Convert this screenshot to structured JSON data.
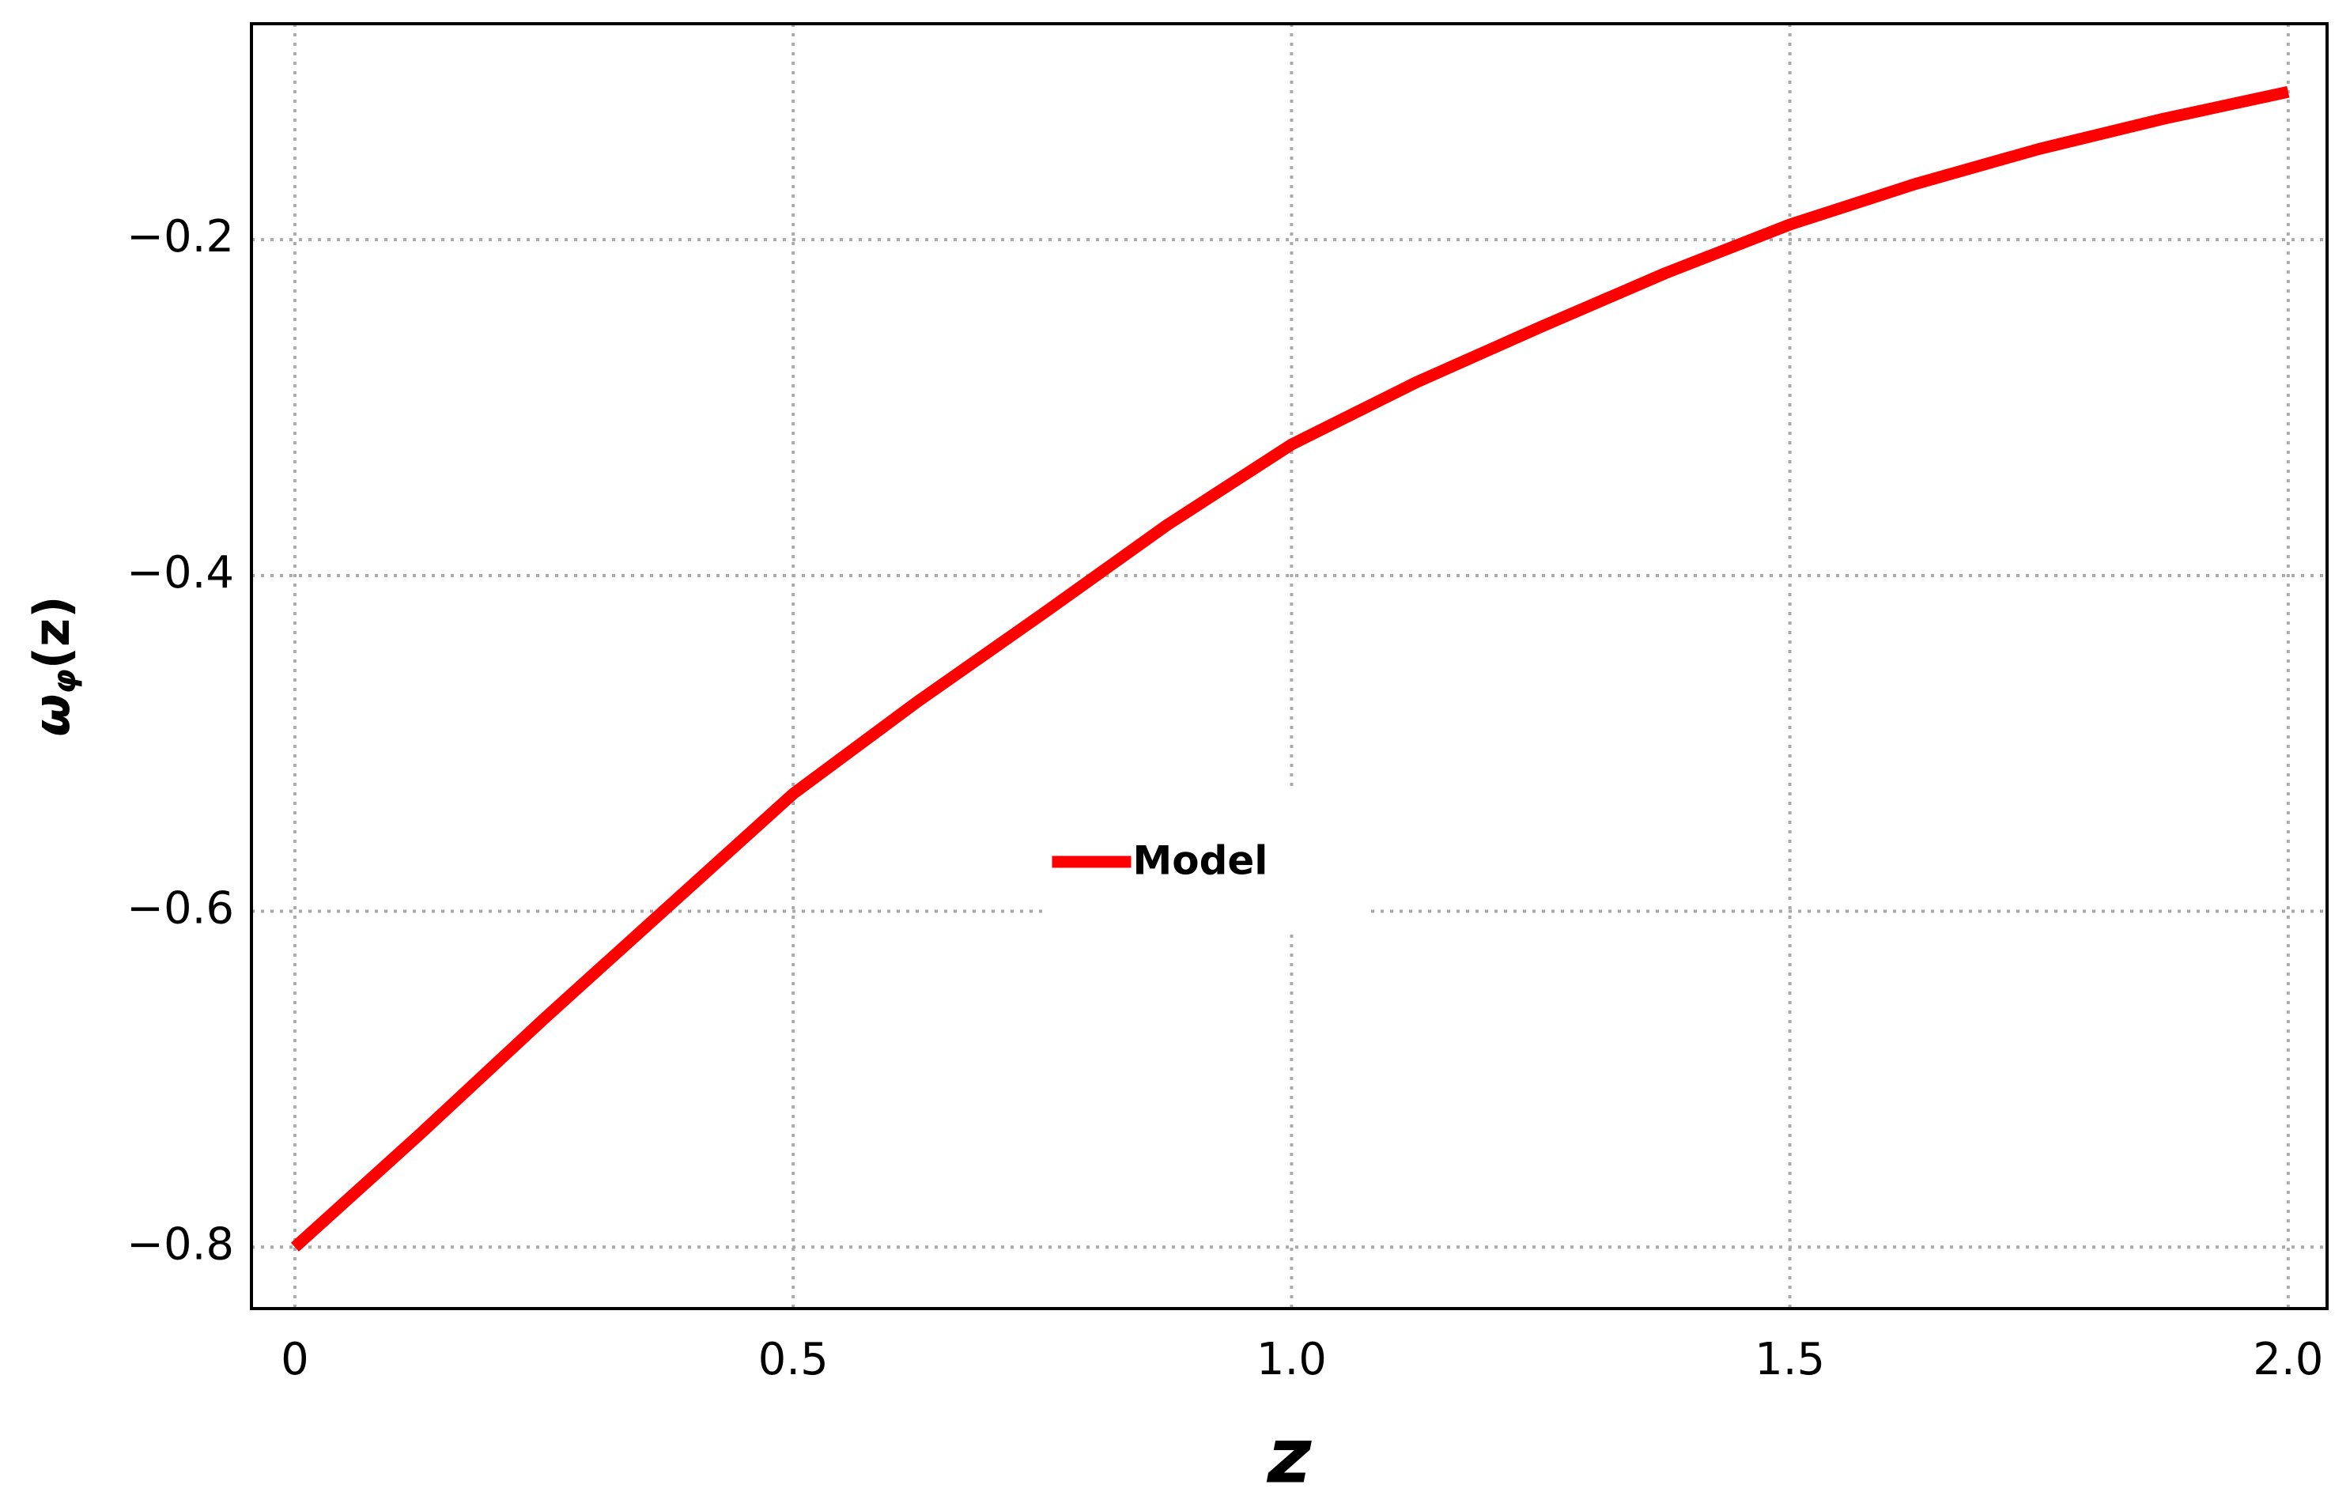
{
  "chart_data": {
    "type": "line",
    "x_label": "z",
    "y_label": {
      "symbol": "ω",
      "subscript": "φ",
      "argument": "(z)"
    },
    "x": [
      0,
      0.125,
      0.25,
      0.375,
      0.5,
      0.625,
      0.75,
      0.875,
      1.0,
      1.125,
      1.25,
      1.375,
      1.5,
      1.625,
      1.75,
      1.875,
      2.0
    ],
    "series": [
      {
        "name": "Model",
        "color": "#ff0000",
        "values": [
          -0.8,
          -0.733,
          -0.664,
          -0.597,
          -0.53,
          -0.475,
          -0.423,
          -0.37,
          -0.322,
          -0.285,
          -0.252,
          -0.22,
          -0.191,
          -0.167,
          -0.146,
          -0.128,
          -0.112
        ]
      }
    ],
    "xlim": [
      -0.0436,
      2.039
    ],
    "ylim": [
      -0.8366,
      -0.0714
    ],
    "xticks": [
      0,
      0.5,
      {
        "value": 1,
        "label": "1.0"
      },
      1.5,
      {
        "value": 2,
        "label": "2.0"
      }
    ],
    "yticks": [
      {
        "value": -0.8,
        "label": "−0.8"
      },
      {
        "value": -0.6,
        "label": "−0.6"
      },
      {
        "value": -0.4,
        "label": "−0.4"
      },
      {
        "value": -0.2,
        "label": "−0.2"
      }
    ],
    "grid": true,
    "legend": "center"
  }
}
